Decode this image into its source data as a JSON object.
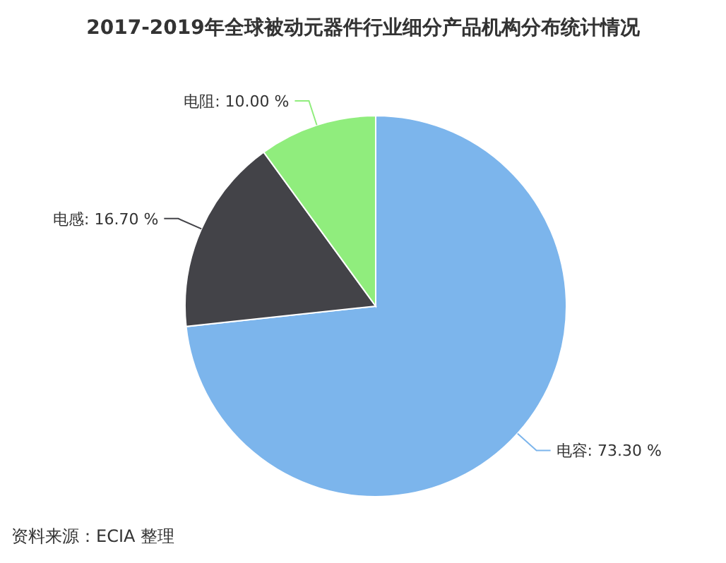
{
  "chart_data": {
    "type": "pie",
    "title": "2017-2019年全球被动元器件行业细分产品机构分布统计情况",
    "categories": [
      "电容",
      "电感",
      "电阻"
    ],
    "values": [
      73.3,
      16.7,
      10.0
    ],
    "colors": [
      "#7cb5ec",
      "#434348",
      "#90ed7d"
    ],
    "value_labels": [
      "73.30 %",
      "16.70 %",
      "10.00 %"
    ],
    "annotations": [
      "资料来源：ECIA 整理"
    ]
  }
}
